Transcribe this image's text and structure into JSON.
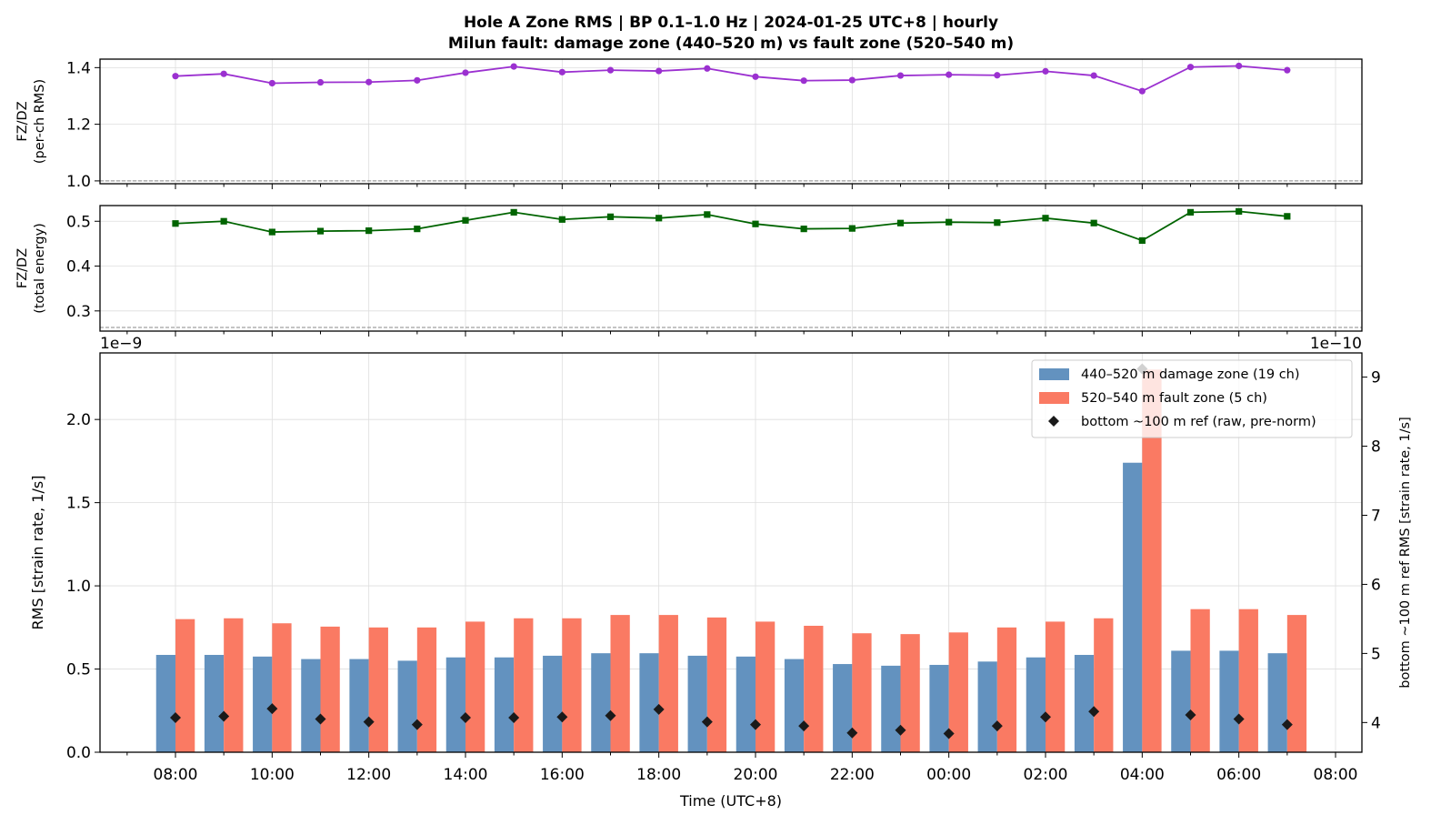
{
  "title_line1": "Hole A Zone RMS  |  BP 0.1–1.0 Hz  |  2024-01-25 UTC+8  |  hourly",
  "title_line2": "Milun fault: damage zone (440–520 m) vs fault zone (520–540 m)",
  "x_tick_labels": [
    "08:00",
    "10:00",
    "12:00",
    "14:00",
    "16:00",
    "18:00",
    "20:00",
    "22:00",
    "00:00",
    "02:00",
    "04:00",
    "06:00",
    "08:00"
  ],
  "xlabel": "Time (UTC+8)",
  "colors": {
    "damage": "#6392bf",
    "fault": "#fa7a63",
    "ref": "#1a1a1a",
    "ratio_rms": "#9b30d0",
    "ratio_energy": "#006400"
  },
  "chart_data": [
    {
      "type": "line",
      "ylabel_line1": "FZ/DZ",
      "ylabel_line2": "(per-ch RMS)",
      "y_tick_labels": [
        "1.0",
        "1.2",
        "1.4"
      ],
      "ylim": [
        0.99,
        1.43
      ],
      "reference_line": 1.0,
      "x_hours_from_start": [
        0,
        1,
        2,
        3,
        4,
        5,
        6,
        7,
        8,
        9,
        10,
        11,
        12,
        13,
        14,
        15,
        16,
        17,
        18,
        19,
        20,
        21,
        22,
        23
      ],
      "values": [
        1.37,
        1.378,
        1.345,
        1.348,
        1.349,
        1.355,
        1.382,
        1.404,
        1.384,
        1.391,
        1.388,
        1.397,
        1.368,
        1.354,
        1.356,
        1.372,
        1.375,
        1.373,
        1.387,
        1.372,
        1.317,
        1.402,
        1.406,
        1.391
      ]
    },
    {
      "type": "line",
      "ylabel_line1": "FZ/DZ",
      "ylabel_line2": "(total energy)",
      "y_tick_labels": [
        "0.3",
        "0.4",
        "0.5"
      ],
      "ylim": [
        0.255,
        0.535
      ],
      "reference_line": 0.263,
      "x_hours_from_start": [
        0,
        1,
        2,
        3,
        4,
        5,
        6,
        7,
        8,
        9,
        10,
        11,
        12,
        13,
        14,
        15,
        16,
        17,
        18,
        19,
        20,
        21,
        22,
        23
      ],
      "values": [
        0.495,
        0.5,
        0.476,
        0.478,
        0.479,
        0.483,
        0.502,
        0.52,
        0.504,
        0.51,
        0.507,
        0.515,
        0.494,
        0.483,
        0.484,
        0.496,
        0.498,
        0.497,
        0.507,
        0.496,
        0.457,
        0.52,
        0.522,
        0.511
      ]
    },
    {
      "type": "bar",
      "ylabel": "RMS  [strain rate, 1/s]",
      "y_scale_label": "1e−9",
      "y_tick_labels": [
        "0.0",
        "0.5",
        "1.0",
        "1.5",
        "2.0"
      ],
      "ylim": [
        0,
        2.4
      ],
      "y2label": "bottom ~100 m ref RMS  [strain rate, 1/s]",
      "y2_scale_label": "1e−10",
      "y2_tick_labels": [
        "4",
        "5",
        "6",
        "7",
        "8",
        "9"
      ],
      "y2lim": [
        3.57,
        9.35
      ],
      "x_hours_from_start": [
        0,
        1,
        2,
        3,
        4,
        5,
        6,
        7,
        8,
        9,
        10,
        11,
        12,
        13,
        14,
        15,
        16,
        17,
        18,
        19,
        20,
        21,
        22,
        23
      ],
      "legend_position": "top-right",
      "series": [
        {
          "name": "440–520 m  damage zone (19 ch)",
          "values": [
            0.585,
            0.585,
            0.575,
            0.56,
            0.56,
            0.55,
            0.57,
            0.57,
            0.58,
            0.595,
            0.595,
            0.58,
            0.575,
            0.56,
            0.53,
            0.52,
            0.525,
            0.545,
            0.57,
            0.585,
            1.74,
            0.61,
            0.61,
            0.595
          ]
        },
        {
          "name": "520–540 m  fault zone (5 ch)",
          "values": [
            0.8,
            0.805,
            0.775,
            0.755,
            0.75,
            0.75,
            0.785,
            0.805,
            0.805,
            0.825,
            0.825,
            0.81,
            0.785,
            0.76,
            0.715,
            0.71,
            0.72,
            0.75,
            0.785,
            0.805,
            2.3,
            0.86,
            0.86,
            0.825
          ]
        },
        {
          "name": "bottom ~100 m ref (raw, pre-norm)",
          "axis": "right",
          "values": [
            4.07,
            4.09,
            4.2,
            4.05,
            4.01,
            3.97,
            4.07,
            4.07,
            4.08,
            4.1,
            4.19,
            4.01,
            3.97,
            3.95,
            3.85,
            3.89,
            3.84,
            3.95,
            4.08,
            4.16,
            9.12,
            4.11,
            4.05,
            3.97
          ]
        }
      ]
    }
  ]
}
